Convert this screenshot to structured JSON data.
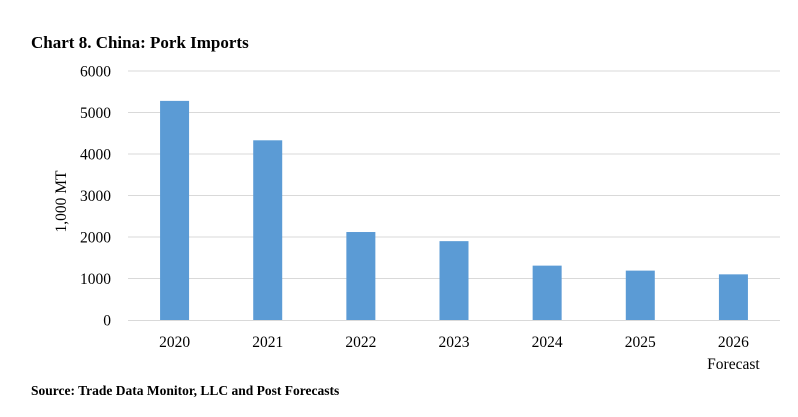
{
  "chart_data": {
    "type": "bar",
    "title": "Chart 8. China: Pork Imports",
    "categories": [
      "2020",
      "2021",
      "2022",
      "2023",
      "2024",
      "2025",
      "2026"
    ],
    "category_sublabels": [
      "",
      "",
      "",
      "",
      "",
      "",
      "Forecast"
    ],
    "values": [
      5280,
      4330,
      2120,
      1900,
      1310,
      1190,
      1100
    ],
    "xlabel": "",
    "ylabel": "1,000 MT",
    "ylim": [
      0,
      6000
    ],
    "yticks": [
      0,
      1000,
      2000,
      3000,
      4000,
      5000,
      6000
    ],
    "grid": true,
    "legend": "none",
    "bar_color": "#5B9BD5",
    "grid_color": "#D9D9D9",
    "source": "Source: Trade Data Monitor, LLC and Post Forecasts"
  }
}
